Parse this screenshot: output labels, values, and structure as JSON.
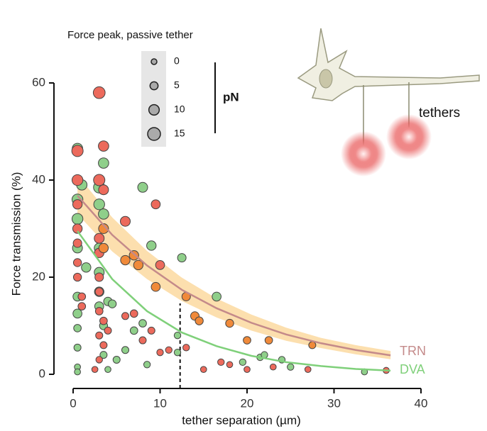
{
  "chart_data": {
    "type": "scatter",
    "x_label": "tether separation (µm)",
    "y_label": "Force transmission (%)",
    "xlim": [
      0,
      40
    ],
    "xticks": [
      0,
      10,
      20,
      30,
      40
    ],
    "ylim": [
      0,
      60
    ],
    "yticks": [
      0,
      20,
      40,
      60
    ],
    "size_legend": {
      "title": "Force peak, passive tether",
      "values": [
        0,
        5,
        10,
        15
      ],
      "unit": "pN"
    },
    "annotation": "tethers",
    "marker_x": 12.3,
    "series": [
      {
        "name": "DVA",
        "color": "#8fcf8a",
        "x": [
          0.5,
          1,
          0.5,
          0.5,
          0.5,
          1.5,
          0.5,
          0.5,
          0.5,
          0.5,
          0.5,
          0.5,
          3.5,
          3,
          3,
          3.5,
          3,
          3,
          3,
          3,
          4,
          4.5,
          3.5,
          3.5,
          4,
          8,
          9,
          12.5,
          8,
          7,
          6,
          5,
          8.5,
          12,
          12,
          16.5,
          19.5,
          21.5,
          22,
          24,
          25,
          33.5
        ],
        "values": [
          46.5,
          39,
          36,
          32,
          26,
          22,
          16,
          12.5,
          9.5,
          5.5,
          1.5,
          0.5,
          43.5,
          38.5,
          35,
          33,
          26,
          21,
          17,
          14,
          15,
          14.5,
          10,
          4,
          1,
          38.5,
          26.5,
          24,
          10.5,
          9,
          5,
          3,
          2,
          8,
          4.5,
          16,
          2.5,
          3.5,
          4,
          3,
          1.5,
          0.5
        ],
        "sizes": [
          10,
          10,
          11,
          11,
          9,
          8,
          7,
          7,
          4,
          3,
          1,
          1,
          10,
          12,
          11,
          10,
          9,
          9,
          8,
          7,
          6,
          5,
          5,
          3,
          1,
          9,
          8,
          6,
          4,
          4,
          3,
          3,
          2,
          2,
          2,
          7,
          2,
          2,
          2,
          2,
          2,
          1
        ]
      },
      {
        "name": "TRN",
        "color": "#ec6a5c",
        "x": [
          3,
          3.5,
          0.5,
          0.5,
          3,
          3.5,
          0.5,
          0.5,
          0.5,
          0.5,
          0.5,
          3,
          3,
          3,
          3,
          3,
          3.5,
          3,
          3.5,
          3,
          2.5,
          6,
          9.5,
          10,
          7,
          9,
          10,
          11,
          13,
          15,
          17,
          18,
          20,
          23,
          27,
          36,
          8,
          6,
          4,
          1,
          1
        ],
        "values": [
          58,
          47,
          46,
          40,
          40,
          38,
          35,
          30,
          27,
          23,
          20,
          28,
          25,
          20,
          17,
          13,
          11,
          8,
          6,
          3,
          1,
          31.5,
          35,
          22.5,
          12.5,
          9,
          4.5,
          5,
          5.5,
          1,
          2.5,
          2,
          1,
          1.5,
          1,
          0.8,
          7,
          12,
          9,
          16,
          14
        ],
        "sizes": [
          13,
          10,
          12,
          11,
          12,
          9,
          8,
          8,
          6,
          5,
          5,
          9,
          8,
          6,
          5,
          4,
          4,
          3,
          3,
          2,
          1,
          9,
          7,
          7,
          4,
          3,
          2,
          2,
          2,
          1,
          2,
          1,
          1,
          1,
          1,
          1,
          3,
          3,
          3,
          4,
          4
        ]
      },
      {
        "color": "#f08a3a",
        "x": [
          3.5,
          3.5,
          6,
          7,
          7.5,
          9.5,
          13,
          14,
          14.5,
          18,
          20,
          22.5,
          27.5
        ],
        "values": [
          30,
          26,
          23.5,
          24.5,
          22.5,
          18,
          16,
          12,
          11,
          10.5,
          7,
          7,
          6
        ],
        "sizes": [
          9,
          8,
          8,
          8,
          8,
          7,
          6,
          6,
          5,
          5,
          4,
          4,
          3
        ]
      }
    ],
    "band": {
      "color": "#fbd9a0",
      "x": [
        0.5,
        4.5,
        8.5,
        12.5,
        16.5,
        20.5,
        24.5,
        28.5,
        32.5,
        36.5
      ],
      "lower": [
        33,
        25.3,
        19.6,
        15.1,
        11.7,
        9.0,
        6.9,
        5.4,
        4.1,
        3.1
      ],
      "upper": [
        41,
        32.3,
        25.4,
        19.9,
        15.6,
        12.3,
        9.6,
        7.5,
        6.0,
        4.8
      ]
    },
    "fits": [
      {
        "color": "#c48a8a",
        "x": [
          0.5,
          4.5,
          8.5,
          12.5,
          16.5,
          20.5,
          24.5,
          28.5,
          32.5,
          36.5
        ],
        "values": [
          36.8,
          28.7,
          22.4,
          17.4,
          13.6,
          10.6,
          8.2,
          6.4,
          5.0,
          3.9
        ]
      },
      {
        "color": "#7fd07a",
        "x": [
          0.5,
          4.5,
          8.5,
          12.5,
          16.5,
          20.5,
          24.5,
          28.5,
          32.5,
          36.5
        ],
        "values": [
          29.5,
          19.6,
          13.0,
          8.6,
          5.8,
          3.8,
          2.5,
          1.7,
          1.1,
          0.75
        ]
      }
    ]
  }
}
